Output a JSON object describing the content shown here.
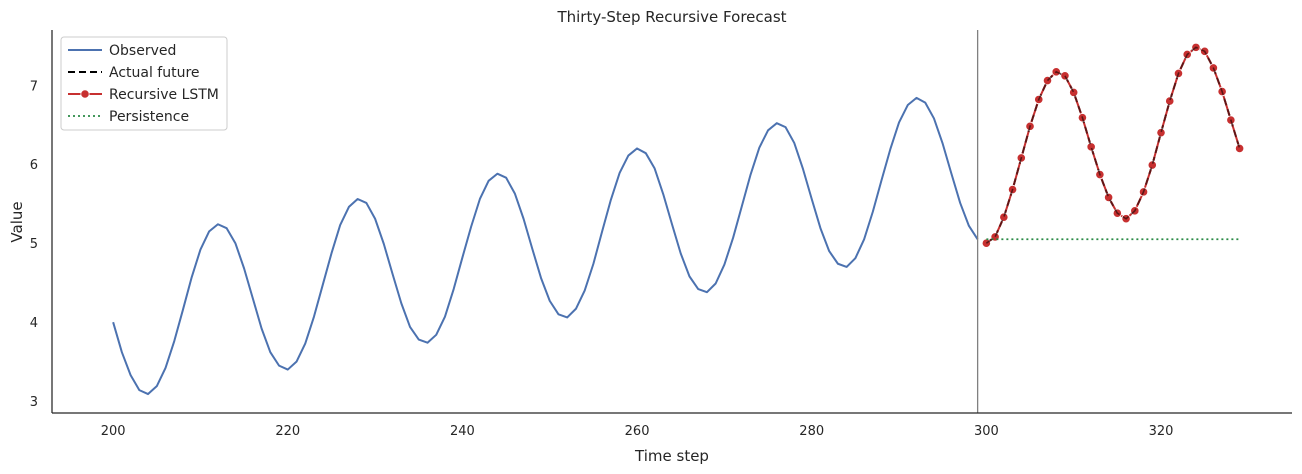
{
  "chart_data": {
    "type": "line",
    "title": "Thirty-Step Recursive Forecast",
    "xlabel": "Time step",
    "ylabel": "Value",
    "xlim": [
      193,
      335
    ],
    "ylim": [
      2.85,
      7.7
    ],
    "xticks": [
      200,
      220,
      240,
      260,
      280,
      300,
      320
    ],
    "yticks": [
      3,
      4,
      5,
      6,
      7
    ],
    "grid": false,
    "legend_position": "top-left",
    "forecast_start_line": 299,
    "series": [
      {
        "name": "Observed",
        "color": "#4c72b0",
        "style": "solid",
        "x": [
          200,
          201,
          202,
          203,
          204,
          205,
          206,
          207,
          208,
          209,
          210,
          211,
          212,
          213,
          214,
          215,
          216,
          217,
          218,
          219,
          220,
          221,
          222,
          223,
          224,
          225,
          226,
          227,
          228,
          229,
          230,
          231,
          232,
          233,
          234,
          235,
          236,
          237,
          238,
          239,
          240,
          241,
          242,
          243,
          244,
          245,
          246,
          247,
          248,
          249,
          250,
          251,
          252,
          253,
          254,
          255,
          256,
          257,
          258,
          259,
          260,
          261,
          262,
          263,
          264,
          265,
          266,
          267,
          268,
          269,
          270,
          271,
          272,
          273,
          274,
          275,
          276,
          277,
          278,
          279,
          280,
          281,
          282,
          283,
          284,
          285,
          286,
          287,
          288,
          289,
          290,
          291,
          292,
          293,
          294,
          295,
          296,
          297,
          298,
          299
        ],
        "values": [
          4.0,
          3.62,
          3.33,
          3.14,
          3.09,
          3.19,
          3.42,
          3.76,
          4.16,
          4.57,
          4.92,
          5.15,
          5.24,
          5.19,
          5.0,
          4.68,
          4.3,
          3.92,
          3.62,
          3.45,
          3.4,
          3.5,
          3.73,
          4.07,
          4.47,
          4.87,
          5.23,
          5.46,
          5.56,
          5.51,
          5.31,
          4.99,
          4.61,
          4.24,
          3.94,
          3.78,
          3.74,
          3.84,
          4.07,
          4.42,
          4.82,
          5.21,
          5.56,
          5.79,
          5.88,
          5.83,
          5.63,
          5.31,
          4.93,
          4.56,
          4.27,
          4.1,
          4.06,
          4.17,
          4.4,
          4.74,
          5.15,
          5.55,
          5.89,
          6.11,
          6.2,
          6.14,
          5.95,
          5.62,
          5.24,
          4.87,
          4.58,
          4.42,
          4.38,
          4.49,
          4.73,
          5.07,
          5.47,
          5.87,
          6.21,
          6.43,
          6.52,
          6.47,
          6.27,
          5.94,
          5.56,
          5.19,
          4.9,
          4.74,
          4.7,
          4.81,
          5.05,
          5.4,
          5.8,
          6.19,
          6.53,
          6.75,
          6.84,
          6.78,
          6.58,
          6.26,
          5.88,
          5.51,
          5.22,
          5.05
        ]
      },
      {
        "name": "Actual future",
        "color": "#000000",
        "style": "dashed",
        "x": [
          300,
          301,
          302,
          303,
          304,
          305,
          306,
          307,
          308,
          309,
          310,
          311,
          312,
          313,
          314,
          315,
          316,
          317,
          318,
          319,
          320,
          321,
          322,
          323,
          324,
          325,
          326,
          327,
          328,
          329
        ],
        "values": [
          5.0,
          5.08,
          5.33,
          5.68,
          6.08,
          6.48,
          6.82,
          7.06,
          7.17,
          7.12,
          6.91,
          6.59,
          6.22,
          5.87,
          5.58,
          5.38,
          5.31,
          5.41,
          5.65,
          5.99,
          6.4,
          6.8,
          7.15,
          7.39,
          7.48,
          7.43,
          7.22,
          6.92,
          6.56,
          6.2
        ]
      },
      {
        "name": "Recursive LSTM",
        "color": "#c73030",
        "style": "solid-markers",
        "x": [
          300,
          301,
          302,
          303,
          304,
          305,
          306,
          307,
          308,
          309,
          310,
          311,
          312,
          313,
          314,
          315,
          316,
          317,
          318,
          319,
          320,
          321,
          322,
          323,
          324,
          325,
          326,
          327,
          328,
          329
        ],
        "values": [
          5.0,
          5.08,
          5.33,
          5.68,
          6.08,
          6.48,
          6.82,
          7.06,
          7.17,
          7.12,
          6.91,
          6.59,
          6.22,
          5.87,
          5.58,
          5.38,
          5.31,
          5.41,
          5.65,
          5.99,
          6.4,
          6.8,
          7.15,
          7.39,
          7.48,
          7.43,
          7.22,
          6.92,
          6.56,
          6.2
        ]
      },
      {
        "name": "Persistence",
        "color": "#2a8a45",
        "style": "dotted",
        "x": [
          300,
          329
        ],
        "values": [
          5.05,
          5.05
        ]
      }
    ]
  }
}
